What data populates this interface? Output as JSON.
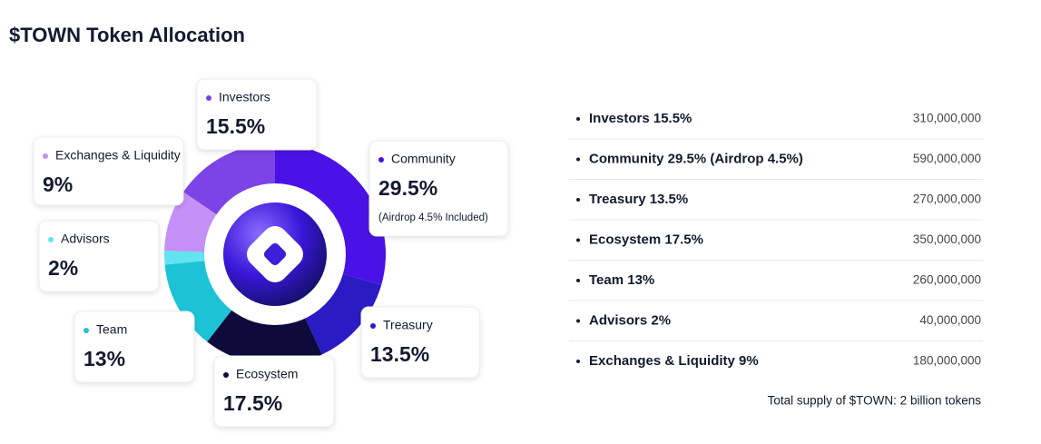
{
  "chart_data": {
    "type": "pie",
    "title": "$TOWN Token Allocation",
    "categories": [
      "Community",
      "Treasury",
      "Ecosystem",
      "Team",
      "Advisors",
      "Exchanges & Liquidity",
      "Investors"
    ],
    "values": [
      29.5,
      13.5,
      17.5,
      13,
      2,
      9,
      15.5
    ],
    "value_labels": [
      "29.5%",
      "13.5%",
      "17.5%",
      "13%",
      "2%",
      "9%",
      "15.5%"
    ],
    "colors": [
      "#4a12e6",
      "#2a1bc4",
      "#0e0b3c",
      "#1cc3d6",
      "#62e3f0",
      "#c48ff6",
      "#7c43e6"
    ],
    "annotation": "(Airdrop 4.5% Included)"
  },
  "allocation_list": {
    "items": [
      {
        "label": "Investors 15.5%",
        "amount": "310,000,000"
      },
      {
        "label": "Community 29.5% (Airdrop 4.5%)",
        "amount": "590,000,000"
      },
      {
        "label": "Treasury 13.5%",
        "amount": "270,000,000"
      },
      {
        "label": "Ecosystem 17.5%",
        "amount": "350,000,000"
      },
      {
        "label": "Team 13%",
        "amount": "260,000,000"
      },
      {
        "label": "Advisors 2%",
        "amount": "40,000,000"
      },
      {
        "label": "Exchanges & Liquidity 9%",
        "amount": "180,000,000"
      }
    ],
    "footnote": "Total supply of $TOWN: 2 billion tokens"
  }
}
